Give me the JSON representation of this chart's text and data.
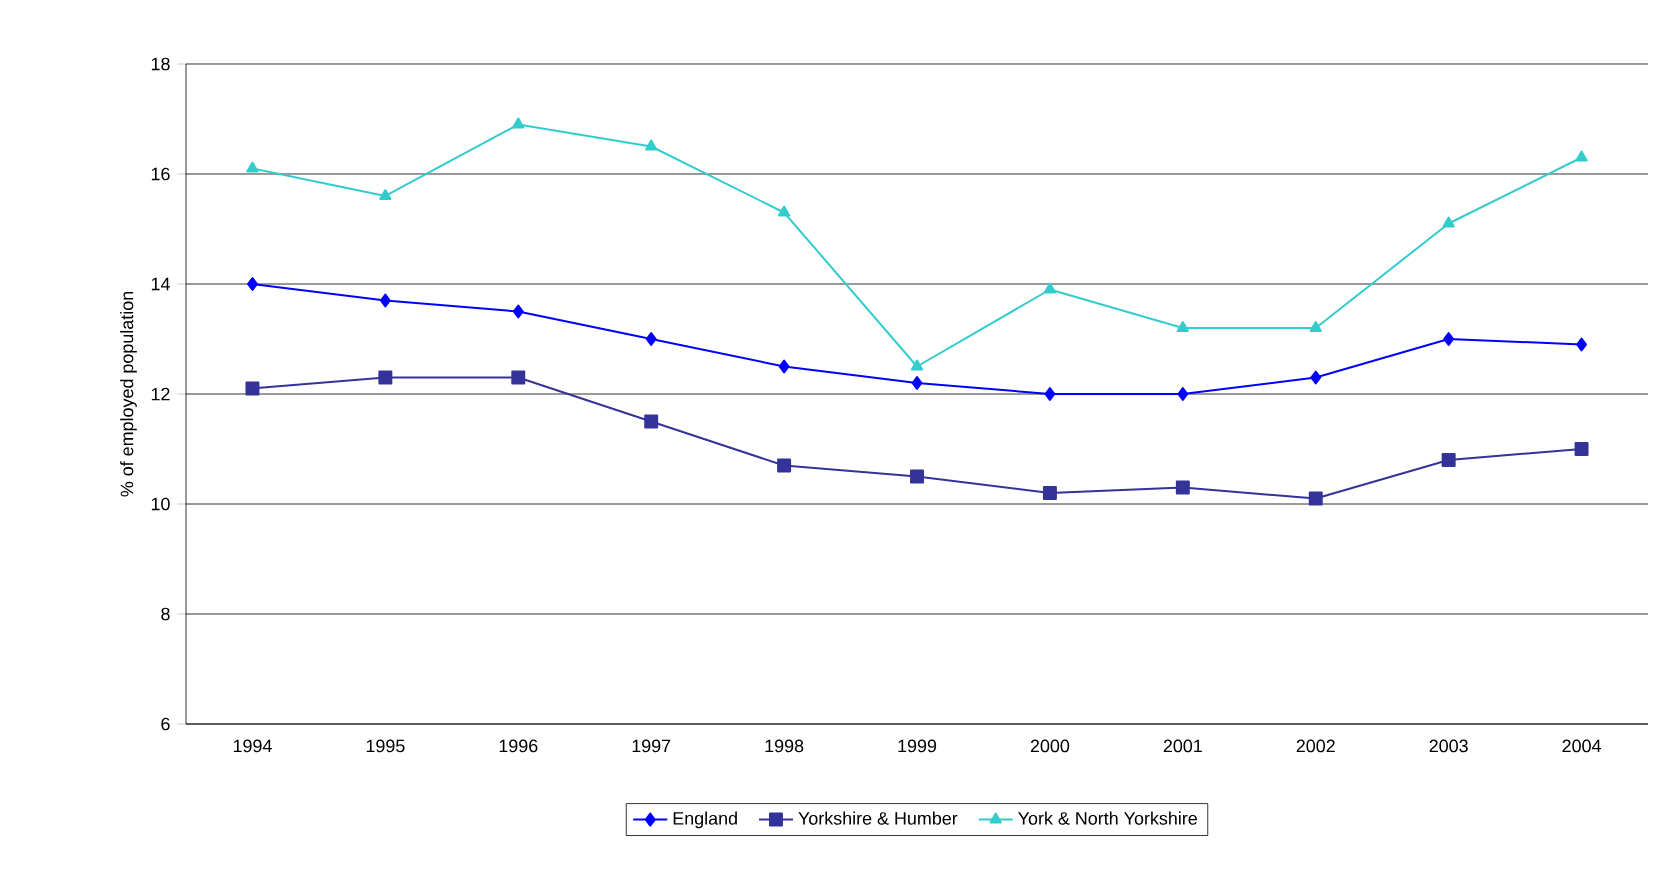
{
  "chart_data": {
    "type": "line",
    "ylabel": "% of employed population",
    "categories": [
      "1994",
      "1995",
      "1996",
      "1997",
      "1998",
      "1999",
      "2000",
      "2001",
      "2002",
      "2003",
      "2004"
    ],
    "series": [
      {
        "name": "England",
        "color": "#0000ff",
        "marker": "diamond",
        "values": [
          14.0,
          13.7,
          13.5,
          13.0,
          12.5,
          12.2,
          12.0,
          12.0,
          12.3,
          13.0,
          12.9
        ]
      },
      {
        "name": "Yorkshire & Humber",
        "color": "#333399",
        "marker": "square",
        "values": [
          12.1,
          12.3,
          12.3,
          11.5,
          10.7,
          10.5,
          10.2,
          10.3,
          10.1,
          10.8,
          11.0
        ]
      },
      {
        "name": "York & North Yorkshire",
        "color": "#33cccc",
        "marker": "triangle",
        "values": [
          16.1,
          15.6,
          16.9,
          16.5,
          15.3,
          12.5,
          13.9,
          13.2,
          13.2,
          15.1,
          16.3
        ]
      }
    ],
    "ylim": [
      6,
      18
    ],
    "yticks": [
      6,
      8,
      10,
      12,
      14,
      16,
      18
    ],
    "grid": "y",
    "legend": "bottom",
    "line_style": "solid"
  }
}
